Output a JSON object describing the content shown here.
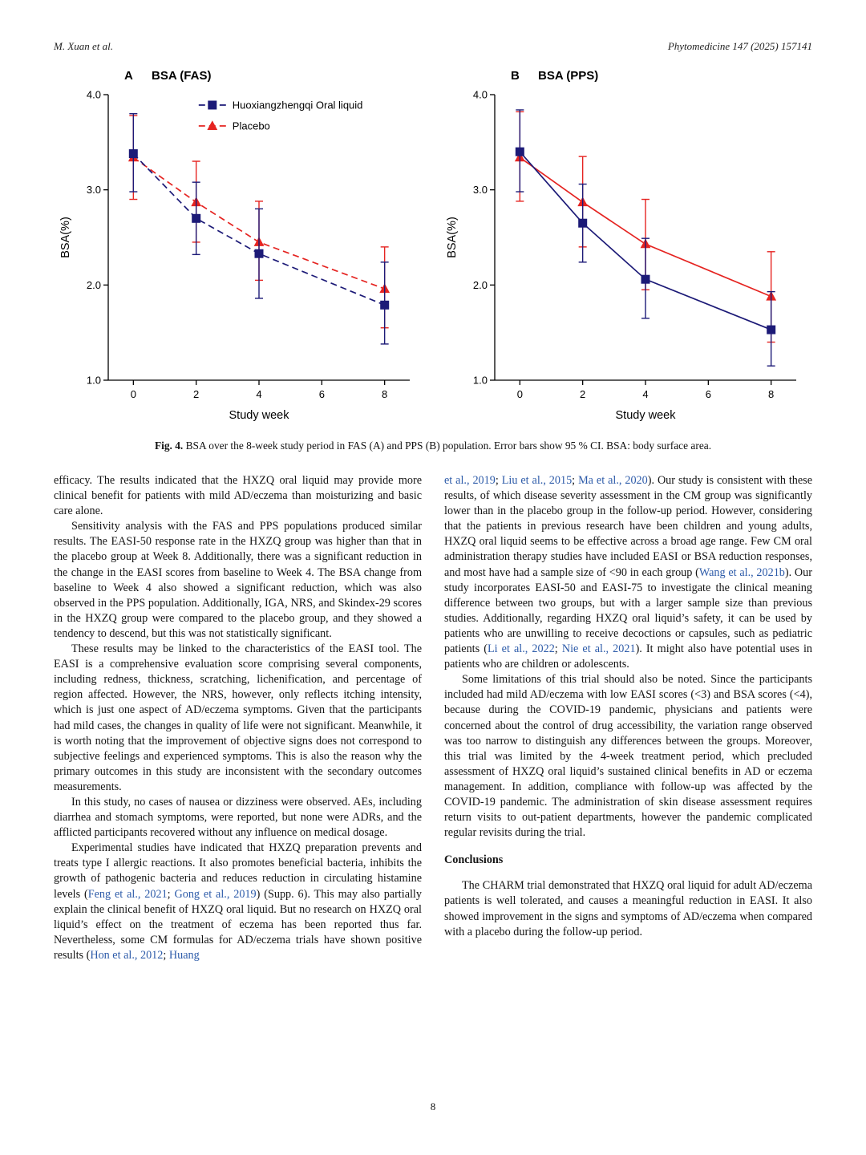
{
  "header": {
    "left": "M. Xuan et al.",
    "right": "Phytomedicine 147 (2025) 157141"
  },
  "figure": {
    "caption_label": "Fig. 4.",
    "caption_text": " BSA over the 8-week study period in FAS (A) and PPS (B) population. Error bars show 95 % CI. BSA: body surface area."
  },
  "colors": {
    "citation": "#2d5ba9",
    "hxzq": "#1c1a77",
    "placebo": "#e52421"
  },
  "chart_data": [
    {
      "type": "line",
      "panel": "A",
      "title": "BSA (FAS)",
      "xlabel": "Study week",
      "ylabel": "BSA(%)",
      "x": [
        0,
        2,
        4,
        8
      ],
      "xticks": [
        0,
        2,
        4,
        6,
        8
      ],
      "yticks": [
        1,
        2,
        3,
        4
      ],
      "xlim": [
        -0.8,
        8.8
      ],
      "ylim": [
        1.0,
        4.0
      ],
      "line_style": "dashed",
      "legend": true,
      "series": [
        {
          "name": "Huoxiangzhengqi Oral liquid",
          "marker": "square",
          "color": "#1c1a77",
          "values": [
            3.38,
            2.7,
            2.33,
            1.79
          ],
          "ci_low": [
            2.98,
            2.32,
            1.86,
            1.38
          ],
          "ci_high": [
            3.8,
            3.08,
            2.8,
            2.24
          ]
        },
        {
          "name": "Placebo",
          "marker": "triangle",
          "color": "#e52421",
          "values": [
            3.34,
            2.87,
            2.45,
            1.96
          ],
          "ci_low": [
            2.9,
            2.45,
            2.05,
            1.55
          ],
          "ci_high": [
            3.78,
            3.3,
            2.88,
            2.4
          ]
        }
      ]
    },
    {
      "type": "line",
      "panel": "B",
      "title": "BSA (PPS)",
      "xlabel": "Study week",
      "ylabel": "BSA(%)",
      "x": [
        0,
        2,
        4,
        8
      ],
      "xticks": [
        0,
        2,
        4,
        6,
        8
      ],
      "yticks": [
        1,
        2,
        3,
        4
      ],
      "xlim": [
        -0.8,
        8.8
      ],
      "ylim": [
        1.0,
        4.0
      ],
      "line_style": "solid",
      "legend": false,
      "series": [
        {
          "name": "Huoxiangzhengqi Oral liquid",
          "marker": "square",
          "color": "#1c1a77",
          "values": [
            3.4,
            2.65,
            2.06,
            1.53
          ],
          "ci_low": [
            2.98,
            2.24,
            1.65,
            1.15
          ],
          "ci_high": [
            3.84,
            3.06,
            2.49,
            1.93
          ]
        },
        {
          "name": "Placebo",
          "marker": "triangle",
          "color": "#e52421",
          "values": [
            3.34,
            2.87,
            2.43,
            1.88
          ],
          "ci_low": [
            2.88,
            2.4,
            1.95,
            1.4
          ],
          "ci_high": [
            3.82,
            3.35,
            2.9,
            2.35
          ]
        }
      ]
    }
  ],
  "body": {
    "left_column": [
      {
        "type": "para",
        "indent": false,
        "segments": [
          {
            "text": "efficacy. The results indicated that the HXZQ oral liquid may provide more clinical benefit for patients with mild AD/eczema than moisturizing and basic care alone."
          }
        ]
      },
      {
        "type": "para",
        "indent": true,
        "segments": [
          {
            "text": "Sensitivity analysis with the FAS and PPS populations produced similar results. The EASI-50 response rate in the HXZQ group was higher than that in the placebo group at Week 8. Additionally, there was a significant reduction in the change in the EASI scores from baseline to Week 4. The BSA change from baseline to Week 4 also showed a significant reduction, which was also observed in the PPS population. Additionally, IGA, NRS, and Skindex-29 scores in the HXZQ group were compared to the placebo group, and they showed a tendency to descend, but this was not statistically significant."
          }
        ]
      },
      {
        "type": "para",
        "indent": true,
        "segments": [
          {
            "text": "These results may be linked to the characteristics of the EASI tool. The EASI is a comprehensive evaluation score comprising several components, including redness, thickness, scratching, lichenification, and percentage of region affected. However, the NRS, however, only reflects itching intensity, which is just one aspect of AD/eczema symptoms. Given that the participants had mild cases, the changes in quality of life were not significant. Meanwhile, it is worth noting that the improvement of objective signs does not correspond to subjective feelings and experienced symptoms. This is also the reason why the primary outcomes in this study are inconsistent with the secondary outcomes measurements."
          }
        ]
      },
      {
        "type": "para",
        "indent": true,
        "segments": [
          {
            "text": "In this study, no cases of nausea or dizziness were observed. AEs, including diarrhea and stomach symptoms, were reported, but none were ADRs, and the afflicted participants recovered without any influence on medical dosage."
          }
        ]
      },
      {
        "type": "para",
        "indent": true,
        "segments": [
          {
            "text": "Experimental studies have indicated that HXZQ preparation prevents and treats type I allergic reactions. It also promotes beneficial bacteria, inhibits the growth of pathogenic bacteria and reduces reduction in circulating histamine levels ("
          },
          {
            "text": "Feng et al., 2021",
            "cite": true
          },
          {
            "text": "; "
          },
          {
            "text": "Gong et al., 2019",
            "cite": true
          },
          {
            "text": ") (Supp. 6). This may also partially explain the clinical benefit of HXZQ oral liquid. But no research on HXZQ oral liquid’s effect on the treatment of eczema has been reported thus far. Nevertheless, some CM formulas for AD/eczema trials have shown positive results ("
          },
          {
            "text": "Hon et al., 2012",
            "cite": true
          },
          {
            "text": "; "
          },
          {
            "text": "Huang",
            "cite": true
          }
        ]
      }
    ],
    "right_column": [
      {
        "type": "para",
        "indent": false,
        "segments": [
          {
            "text": "et al., 2019",
            "cite": true
          },
          {
            "text": "; "
          },
          {
            "text": "Liu et al., 2015",
            "cite": true
          },
          {
            "text": "; "
          },
          {
            "text": "Ma et al., 2020",
            "cite": true
          },
          {
            "text": "). Our study is consistent with these results, of which disease severity assessment in the CM group was significantly lower than in the placebo group in the follow-up period. However, considering that the patients in previous research have been children and young adults, HXZQ oral liquid seems to be effective across a broad age range. Few CM oral administration therapy studies have included EASI or BSA reduction responses, and most have had a sample size of <90 in each group ("
          },
          {
            "text": "Wang et al., 2021b",
            "cite": true
          },
          {
            "text": "). Our study incorporates EASI-50 and EASI-75 to investigate the clinical meaning difference between two groups, but with a larger sample size than previous studies. Additionally, regarding HXZQ oral liquid’s safety, it can be used by patients who are unwilling to receive decoctions or capsules, such as pediatric patients ("
          },
          {
            "text": "Li et al., 2022",
            "cite": true
          },
          {
            "text": "; "
          },
          {
            "text": "Nie et al., 2021",
            "cite": true
          },
          {
            "text": "). It might also have potential uses in patients who are children or adolescents."
          }
        ]
      },
      {
        "type": "para",
        "indent": true,
        "segments": [
          {
            "text": "Some limitations of this trial should also be noted. Since the participants included had mild AD/eczema with low EASI scores (<3) and BSA scores (<4), because during the COVID-19 pandemic, physicians and patients were concerned about the control of drug accessibility, the variation range observed was too narrow to distinguish any differences between the groups. Moreover, this trial was limited by the 4-week treatment period, which precluded assessment of HXZQ oral liquid’s sustained clinical benefits in AD or eczema management. In addition, compliance with follow-up was affected by the COVID-19 pandemic. The administration of skin disease assessment requires return visits to out-patient departments, however the pandemic complicated regular revisits during the trial."
          }
        ]
      },
      {
        "type": "heading",
        "text": "Conclusions"
      },
      {
        "type": "para",
        "indent": true,
        "segments": [
          {
            "text": "The CHARM trial demonstrated that HXZQ oral liquid for adult AD/eczema patients is well tolerated, and causes a meaningful reduction in EASI. It also showed improvement in the signs and symptoms of AD/eczema when compared with a placebo during the follow-up period."
          }
        ]
      }
    ]
  },
  "footer": {
    "page_number": "8"
  }
}
